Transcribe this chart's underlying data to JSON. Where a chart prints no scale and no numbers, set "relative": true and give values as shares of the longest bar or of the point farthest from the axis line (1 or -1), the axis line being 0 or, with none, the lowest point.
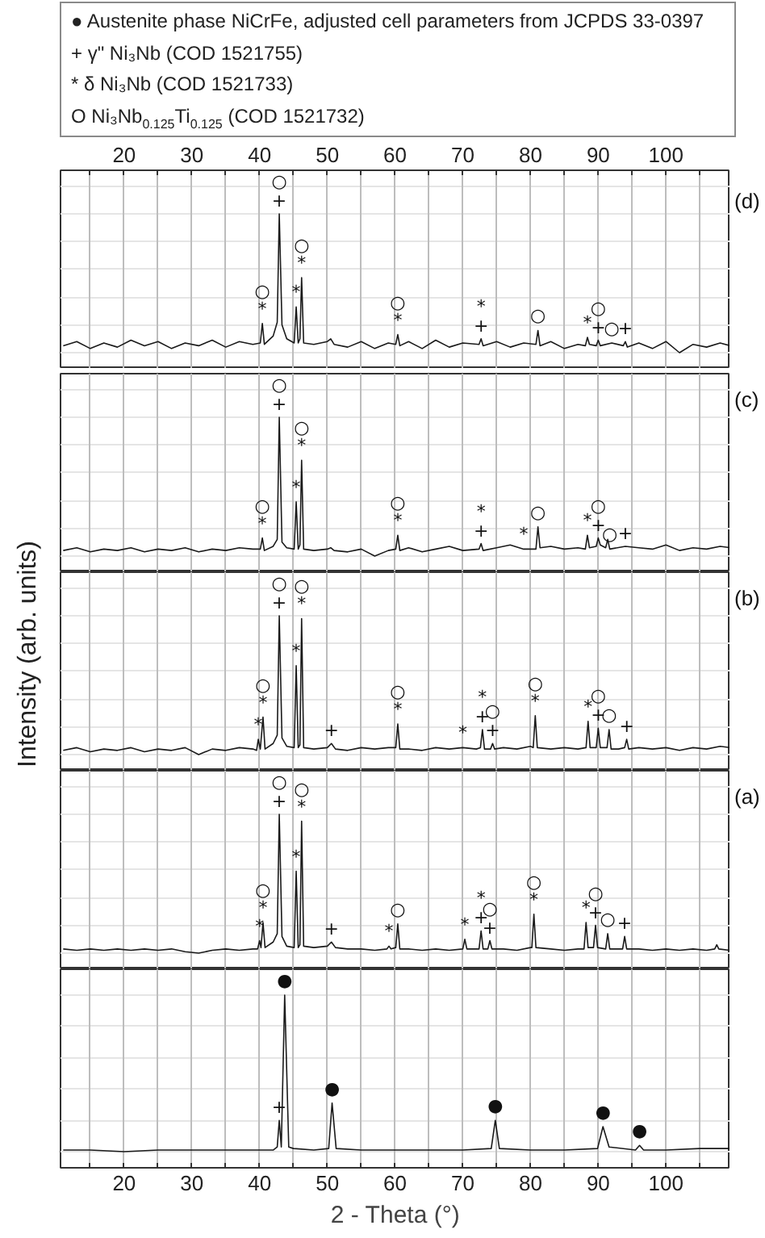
{
  "chart_data": [
    {
      "type": "line",
      "relative": true,
      "title": "(d)",
      "grid": "x",
      "tick_labels": false,
      "xlim": [
        10.6,
        109.5
      ],
      "xticks": [
        {
          "value": 15,
          "label": null
        },
        20,
        {
          "value": 25,
          "label": null
        },
        30,
        {
          "value": 35,
          "label": null
        },
        40,
        {
          "value": 45,
          "label": null
        },
        50,
        {
          "value": 55,
          "label": null
        },
        60,
        {
          "value": 65,
          "label": null
        },
        70,
        {
          "value": 75,
          "label": null
        },
        80,
        {
          "value": 85,
          "label": null
        },
        90,
        {
          "value": 95,
          "label": null
        },
        100,
        {
          "value": 105,
          "label": null
        }
      ],
      "x2lim": [
        10.6,
        109.5
      ],
      "x2ticks": [
        {
          "value": 15,
          "label": null
        },
        20,
        {
          "value": 25,
          "label": null
        },
        30,
        {
          "value": 35,
          "label": null
        },
        40,
        {
          "value": 45,
          "label": null
        },
        50,
        {
          "value": 55,
          "label": null
        },
        60,
        {
          "value": 65,
          "label": null
        },
        70,
        {
          "value": 75,
          "label": null
        },
        80,
        {
          "value": 85,
          "label": null
        },
        90,
        {
          "value": 95,
          "label": null
        },
        100,
        {
          "value": 105,
          "label": null
        }
      ],
      "series": [
        {
          "color": "#1a1a1a",
          "x": [
            11,
            13,
            15,
            17,
            19,
            21,
            23,
            25,
            27,
            29,
            31,
            33,
            35,
            37,
            39,
            40.1,
            40.4,
            40.7,
            42,
            42.6,
            42.9,
            43.3,
            44,
            45.1,
            45.4,
            45.7,
            45.95,
            46.2,
            46.5,
            48,
            50,
            50.5,
            51,
            53,
            55,
            57,
            59,
            60.1,
            60.4,
            60.7,
            62,
            64,
            66,
            68,
            70,
            72.4,
            72.7,
            73,
            75,
            77,
            79,
            80.8,
            81.1,
            81.4,
            83,
            85,
            87,
            88.1,
            88.4,
            88.7,
            89.7,
            90,
            90.3,
            92,
            93.7,
            94,
            94.3,
            96,
            98,
            100,
            102,
            104,
            106,
            108,
            109.5
          ],
          "values": [
            0.05,
            0.08,
            0.03,
            0.07,
            0.04,
            0.09,
            0.05,
            0.08,
            0.03,
            0.07,
            0.05,
            0.09,
            0.04,
            0.08,
            0.06,
            0.07,
            0.21,
            0.06,
            0.12,
            0.22,
            1,
            0.2,
            0.1,
            0.07,
            0.33,
            0.07,
            0.1,
            0.54,
            0.07,
            0.06,
            0.08,
            0.1,
            0.06,
            0.04,
            0.08,
            0.03,
            0.07,
            0.06,
            0.13,
            0.05,
            0.08,
            0.03,
            0.09,
            0.04,
            0.07,
            0.06,
            0.1,
            0.05,
            0.08,
            0.04,
            0.07,
            0.06,
            0.16,
            0.05,
            0.08,
            0.03,
            0.06,
            0.05,
            0.11,
            0.06,
            0.05,
            0.09,
            0.05,
            0.07,
            0.05,
            0.08,
            0.04,
            0.07,
            0.03,
            0.08,
            0,
            0.06,
            0.04,
            0.07,
            0.05
          ]
        }
      ],
      "annotations": [
        "● Austenite phase NiCrFe, adjusted cell parameters from JCPDS 33-0397",
        "+ γ\" Ni₃Nb (COD 1521755)",
        "* δ Ni₃Nb (COD 1521733)",
        "O Ni₃Nb$_{0.125}$Ti$_{0.125}$ (COD 1521732)",
        {
          "text": "*",
          "x": 40.4,
          "y": 0.21
        },
        {
          "text": "○",
          "x": 40.4,
          "y": 0.21
        },
        {
          "text": "+",
          "x": 42.9,
          "y": 1
        },
        {
          "text": "○",
          "x": 42.9,
          "y": 1
        },
        {
          "text": "*",
          "x": 45.4,
          "y": 0.33
        },
        {
          "text": "*",
          "x": 46.2,
          "y": 0.54
        },
        {
          "text": "○",
          "x": 46.2,
          "y": 0.54
        },
        {
          "text": "*",
          "x": 60.4,
          "y": 0.13
        },
        {
          "text": "○",
          "x": 60.4,
          "y": 0.13
        },
        {
          "text": "+",
          "x": 72.7,
          "y": 0.1
        },
        {
          "text": "*",
          "x": 72.7,
          "y": 0.1
        },
        {
          "text": "○",
          "x": 81.1,
          "y": 0.16
        },
        {
          "text": "*",
          "x": 88.4,
          "y": 0.11
        },
        {
          "text": "+",
          "x": 90,
          "y": 0.09
        },
        {
          "text": "○",
          "x": 90,
          "y": 0.09
        },
        {
          "text": "○",
          "x": 92,
          "y": 0.07
        },
        {
          "text": "+",
          "x": 94,
          "y": 0.08
        }
      ]
    },
    {
      "type": "line",
      "relative": true,
      "title": "(c)",
      "grid": "x",
      "tick_labels": false,
      "xlim": [
        10.6,
        109.5
      ],
      "xticks": [
        {
          "value": 15,
          "label": null
        },
        20,
        {
          "value": 25,
          "label": null
        },
        30,
        {
          "value": 35,
          "label": null
        },
        40,
        {
          "value": 45,
          "label": null
        },
        50,
        {
          "value": 55,
          "label": null
        },
        60,
        {
          "value": 65,
          "label": null
        },
        70,
        {
          "value": 75,
          "label": null
        },
        80,
        {
          "value": 85,
          "label": null
        },
        90,
        {
          "value": 95,
          "label": null
        },
        100,
        {
          "value": 105,
          "label": null
        }
      ],
      "series": [
        {
          "color": "#1a1a1a",
          "x": [
            11,
            13,
            15,
            17,
            19,
            21,
            23,
            25,
            27,
            29,
            31,
            33,
            35,
            37,
            39,
            40.1,
            40.4,
            40.7,
            42,
            42.6,
            42.9,
            43.3,
            44,
            45.1,
            45.4,
            45.7,
            45.95,
            46.2,
            46.5,
            48,
            50,
            50.5,
            51,
            53,
            55,
            57,
            59,
            60.1,
            60.4,
            60.7,
            62,
            64,
            66,
            68,
            70,
            72.4,
            72.7,
            73,
            75,
            77,
            79,
            80.8,
            81.1,
            81.4,
            83,
            85,
            87,
            88.1,
            88.4,
            88.7,
            89.7,
            90,
            90.3,
            91.1,
            91.4,
            91.7,
            94,
            96,
            98,
            100,
            102,
            104,
            106,
            108,
            109.5
          ],
          "values": [
            0.04,
            0.06,
            0.03,
            0.05,
            0.04,
            0.06,
            0.03,
            0.05,
            0.04,
            0.06,
            0.03,
            0.05,
            0.04,
            0.06,
            0.05,
            0.05,
            0.13,
            0.04,
            0.07,
            0.12,
            1,
            0.1,
            0.06,
            0.05,
            0.39,
            0.05,
            0.08,
            0.69,
            0.05,
            0.04,
            0.05,
            0.06,
            0.04,
            0.03,
            0.05,
            0,
            0.04,
            0.05,
            0.15,
            0.04,
            0.06,
            0.03,
            0.05,
            0.07,
            0.04,
            0.05,
            0.09,
            0.04,
            0.06,
            0.08,
            0.05,
            0.05,
            0.21,
            0.06,
            0.07,
            0.05,
            0.06,
            0.05,
            0.15,
            0.06,
            0.07,
            0.13,
            0.08,
            0.06,
            0.12,
            0.05,
            0.07,
            0.06,
            0.05,
            0.08,
            0.04,
            0.06,
            0.05,
            0.07,
            0.06
          ]
        }
      ],
      "annotations": [
        {
          "text": "*",
          "x": 40.4,
          "y": 0.13
        },
        {
          "text": "○",
          "x": 40.4,
          "y": 0.13
        },
        {
          "text": "+",
          "x": 42.9,
          "y": 1
        },
        {
          "text": "○",
          "x": 42.9,
          "y": 1
        },
        {
          "text": "*",
          "x": 45.4,
          "y": 0.39
        },
        {
          "text": "*",
          "x": 46.2,
          "y": 0.69
        },
        {
          "text": "○",
          "x": 46.2,
          "y": 0.69
        },
        {
          "text": "*",
          "x": 60.4,
          "y": 0.15
        },
        {
          "text": "○",
          "x": 60.4,
          "y": 0.15
        },
        {
          "text": "+",
          "x": 72.7,
          "y": 0.09
        },
        {
          "text": "*",
          "x": 72.7,
          "y": 0.09
        },
        {
          "text": "*",
          "x": 79,
          "y": 0.05
        },
        {
          "text": "○",
          "x": 81.1,
          "y": 0.21
        },
        {
          "text": "*",
          "x": 88.4,
          "y": 0.15
        },
        {
          "text": "+",
          "x": 90,
          "y": 0.13
        },
        {
          "text": "○",
          "x": 90,
          "y": 0.13
        },
        {
          "text": "○",
          "x": 91.7,
          "y": 0.05
        },
        {
          "text": "+",
          "x": 94,
          "y": 0.07
        }
      ]
    },
    {
      "type": "line",
      "relative": true,
      "title": "(b)",
      "ylabel": "Intensity (arb. units)",
      "grid": "x",
      "tick_labels": false,
      "xlim": [
        10.6,
        109.5
      ],
      "xticks": [
        {
          "value": 15,
          "label": null
        },
        20,
        {
          "value": 25,
          "label": null
        },
        30,
        {
          "value": 35,
          "label": null
        },
        40,
        {
          "value": 45,
          "label": null
        },
        50,
        {
          "value": 55,
          "label": null
        },
        60,
        {
          "value": 65,
          "label": null
        },
        70,
        {
          "value": 75,
          "label": null
        },
        80,
        {
          "value": 85,
          "label": null
        },
        90,
        {
          "value": 95,
          "label": null
        },
        100,
        {
          "value": 105,
          "label": null
        }
      ],
      "series": [
        {
          "color": "#1a1a1a",
          "x": [
            11,
            13,
            15,
            17,
            19,
            21,
            23,
            25,
            27,
            29,
            31,
            33,
            35,
            37,
            39,
            39.55,
            39.8,
            40.1,
            40.5,
            40.8,
            42,
            42.6,
            42.9,
            43.3,
            44,
            45.1,
            45.4,
            45.7,
            45.95,
            46.2,
            46.5,
            48,
            50,
            50.6,
            51.2,
            53,
            55,
            57,
            59,
            60.1,
            60.4,
            60.7,
            62,
            64,
            66,
            68,
            70,
            72,
            72.6,
            72.9,
            73.2,
            74.1,
            74.4,
            74.7,
            76,
            78,
            80,
            80.4,
            80.7,
            81,
            83,
            85,
            87,
            88.2,
            88.5,
            88.8,
            89.7,
            90,
            90.3,
            91.3,
            91.6,
            91.9,
            93,
            93.9,
            94.2,
            94.5,
            96,
            98,
            100,
            102,
            104,
            106,
            108,
            109.5
          ],
          "values": [
            0.03,
            0.05,
            0.02,
            0.04,
            0.03,
            0.05,
            0.02,
            0.04,
            0.03,
            0.05,
            0,
            0.04,
            0.03,
            0.05,
            0.04,
            0.03,
            0.11,
            0.04,
            0.27,
            0.04,
            0.08,
            0.14,
            1,
            0.12,
            0.06,
            0.05,
            0.64,
            0.05,
            0.07,
            0.98,
            0.05,
            0.04,
            0.05,
            0.08,
            0.04,
            0.03,
            0.05,
            0.04,
            0.05,
            0.05,
            0.22,
            0.04,
            0.04,
            0.03,
            0.05,
            0.04,
            0.05,
            0.04,
            0.05,
            0.18,
            0.04,
            0.04,
            0.08,
            0.04,
            0.05,
            0.04,
            0.06,
            0.05,
            0.28,
            0.05,
            0.04,
            0.05,
            0.04,
            0.05,
            0.24,
            0.05,
            0.05,
            0.19,
            0.05,
            0.05,
            0.18,
            0.04,
            0.04,
            0.05,
            0.11,
            0.04,
            0.05,
            0.04,
            0.05,
            0.03,
            0.05,
            0.04,
            0.06,
            0.05
          ]
        }
      ],
      "annotations": [
        {
          "text": "*",
          "x": 39.8,
          "y": 0.11
        },
        {
          "text": "*",
          "x": 40.5,
          "y": 0.27
        },
        {
          "text": "○",
          "x": 40.5,
          "y": 0.27
        },
        {
          "text": "+",
          "x": 42.9,
          "y": 1
        },
        {
          "text": "○",
          "x": 42.9,
          "y": 1
        },
        {
          "text": "*",
          "x": 45.4,
          "y": 0.64
        },
        {
          "text": "*",
          "x": 46.2,
          "y": 0.98
        },
        {
          "text": "○",
          "x": 46.2,
          "y": 0.98
        },
        {
          "text": "+",
          "x": 50.6,
          "y": 0.08
        },
        {
          "text": "*",
          "x": 60.4,
          "y": 0.22
        },
        {
          "text": "○",
          "x": 60.4,
          "y": 0.22
        },
        {
          "text": "*",
          "x": 70,
          "y": 0.05
        },
        {
          "text": "+",
          "x": 72.9,
          "y": 0.18
        },
        {
          "text": "*",
          "x": 72.9,
          "y": 0.18
        },
        {
          "text": "+",
          "x": 74.4,
          "y": 0.08
        },
        {
          "text": "○",
          "x": 74.4,
          "y": 0.08
        },
        {
          "text": "*",
          "x": 80.7,
          "y": 0.28
        },
        {
          "text": "○",
          "x": 80.7,
          "y": 0.28
        },
        {
          "text": "*",
          "x": 88.5,
          "y": 0.24
        },
        {
          "text": "+",
          "x": 90,
          "y": 0.19
        },
        {
          "text": "○",
          "x": 90,
          "y": 0.19
        },
        {
          "text": "○",
          "x": 91.6,
          "y": 0.18
        },
        {
          "text": "+",
          "x": 94.2,
          "y": 0.11
        }
      ]
    },
    {
      "type": "line",
      "relative": true,
      "title": "(a)",
      "grid": "x",
      "tick_labels": false,
      "xlim": [
        10.6,
        109.5
      ],
      "xticks": [
        {
          "value": 15,
          "label": null
        },
        20,
        {
          "value": 25,
          "label": null
        },
        30,
        {
          "value": 35,
          "label": null
        },
        40,
        {
          "value": 45,
          "label": null
        },
        50,
        {
          "value": 55,
          "label": null
        },
        60,
        {
          "value": 65,
          "label": null
        },
        70,
        {
          "value": 75,
          "label": null
        },
        80,
        {
          "value": 85,
          "label": null
        },
        90,
        {
          "value": 95,
          "label": null
        },
        100,
        {
          "value": 105,
          "label": null
        }
      ],
      "series": [
        {
          "color": "#1a1a1a",
          "x": [
            11,
            13,
            15,
            17,
            19,
            21,
            23,
            25,
            27,
            29,
            31,
            33,
            35,
            37,
            39,
            39.7,
            40,
            40.2,
            40.5,
            40.8,
            42,
            42.6,
            42.9,
            43.3,
            44,
            45.1,
            45.4,
            45.7,
            45.95,
            46.2,
            46.5,
            48,
            50,
            50.6,
            51.2,
            53,
            55,
            57,
            58.8,
            59.1,
            59.4,
            60.1,
            60.4,
            60.7,
            62,
            64,
            66,
            68,
            70,
            70.3,
            70.6,
            72.4,
            72.7,
            73,
            73.7,
            74,
            74.3,
            76,
            78,
            80,
            80.2,
            80.5,
            80.8,
            83,
            85,
            87,
            87.9,
            88.2,
            88.5,
            89.3,
            89.6,
            89.9,
            91.1,
            91.4,
            91.7,
            93,
            93.6,
            93.9,
            94.2,
            96,
            98,
            100,
            102,
            104,
            106,
            107.2,
            107.5,
            107.8,
            109.5
          ],
          "values": [
            0.03,
            0.02,
            0.03,
            0.02,
            0.03,
            0.02,
            0.03,
            0.02,
            0.03,
            0.01,
            0,
            0.02,
            0.03,
            0.02,
            0.03,
            0.03,
            0.09,
            0.04,
            0.22,
            0.04,
            0.08,
            0.14,
            1,
            0.12,
            0.05,
            0.04,
            0.59,
            0.04,
            0.06,
            0.95,
            0.05,
            0.04,
            0.05,
            0.08,
            0.04,
            0.03,
            0.03,
            0.02,
            0.03,
            0.05,
            0.03,
            0.04,
            0.21,
            0.03,
            0.03,
            0.02,
            0.03,
            0.02,
            0.03,
            0.1,
            0.03,
            0.03,
            0.16,
            0.03,
            0.03,
            0.09,
            0.03,
            0.03,
            0.02,
            0.04,
            0.04,
            0.28,
            0.04,
            0.03,
            0.02,
            0.03,
            0.03,
            0.22,
            0.04,
            0.04,
            0.2,
            0.04,
            0.03,
            0.14,
            0.03,
            0.03,
            0.03,
            0.12,
            0.03,
            0.03,
            0.02,
            0.03,
            0.02,
            0.03,
            0.02,
            0.03,
            0.06,
            0.03,
            0.02
          ]
        }
      ],
      "annotations": [
        {
          "text": "*",
          "x": 40,
          "y": 0.09
        },
        {
          "text": "*",
          "x": 40.5,
          "y": 0.22
        },
        {
          "text": "○",
          "x": 40.5,
          "y": 0.22
        },
        {
          "text": "+",
          "x": 42.9,
          "y": 1
        },
        {
          "text": "○",
          "x": 42.9,
          "y": 1
        },
        {
          "text": "*",
          "x": 45.4,
          "y": 0.59
        },
        {
          "text": "*",
          "x": 46.2,
          "y": 0.95
        },
        {
          "text": "○",
          "x": 46.2,
          "y": 0.95
        },
        {
          "text": "+",
          "x": 50.6,
          "y": 0.08
        },
        {
          "text": "*",
          "x": 59.1,
          "y": 0.05
        },
        {
          "text": "○",
          "x": 60.4,
          "y": 0.21
        },
        {
          "text": "*",
          "x": 70.3,
          "y": 0.1
        },
        {
          "text": "+",
          "x": 72.7,
          "y": 0.16
        },
        {
          "text": "*",
          "x": 72.7,
          "y": 0.16
        },
        {
          "text": "+",
          "x": 74,
          "y": 0.09
        },
        {
          "text": "○",
          "x": 74,
          "y": 0.09
        },
        {
          "text": "*",
          "x": 80.5,
          "y": 0.28
        },
        {
          "text": "○",
          "x": 80.5,
          "y": 0.28
        },
        {
          "text": "*",
          "x": 88.2,
          "y": 0.22
        },
        {
          "text": "+",
          "x": 89.6,
          "y": 0.2
        },
        {
          "text": "○",
          "x": 89.6,
          "y": 0.2
        },
        {
          "text": "○",
          "x": 91.4,
          "y": 0.14
        },
        {
          "text": "+",
          "x": 93.9,
          "y": 0.12
        }
      ]
    },
    {
      "type": "line",
      "relative": true,
      "grid": "x",
      "tick_labels": "x",
      "xlabel": "2 - Theta (°)",
      "xlim": [
        10.6,
        109.5
      ],
      "xticks": [
        {
          "value": 15,
          "label": null
        },
        20,
        {
          "value": 25,
          "label": null
        },
        30,
        {
          "value": 35,
          "label": null
        },
        40,
        {
          "value": 45,
          "label": null
        },
        50,
        {
          "value": 55,
          "label": null
        },
        60,
        {
          "value": 65,
          "label": null
        },
        70,
        {
          "value": 75,
          "label": null
        },
        80,
        {
          "value": 85,
          "label": null
        },
        90,
        {
          "value": 95,
          "label": null
        },
        100,
        {
          "value": 105,
          "label": null
        }
      ],
      "series": [
        {
          "color": "#1a1a1a",
          "x": [
            11,
            15,
            20,
            25,
            30,
            35,
            40,
            42,
            42.6,
            42.9,
            43.2,
            43.7,
            44.3,
            45,
            48,
            50.2,
            50.7,
            51.3,
            55,
            60,
            65,
            70,
            74.2,
            74.8,
            75.4,
            80,
            85,
            89.9,
            90.7,
            91.6,
            95.5,
            96.1,
            96.7,
            100,
            105,
            109.5
          ],
          "values": [
            0.01,
            0.01,
            0,
            0.01,
            0.01,
            0.01,
            0.01,
            0.01,
            0.03,
            0.2,
            0.03,
            1,
            0.03,
            0.02,
            0.01,
            0.02,
            0.31,
            0.02,
            0.01,
            0.01,
            0.01,
            0.01,
            0.02,
            0.2,
            0.02,
            0.01,
            0.01,
            0.02,
            0.16,
            0.03,
            0.01,
            0.04,
            0.01,
            0.01,
            0.02,
            0.02
          ]
        }
      ],
      "annotations": [
        {
          "text": "+",
          "x": 42.9,
          "y": 0.2
        },
        {
          "text": "●",
          "x": 43.7,
          "y": 1
        },
        {
          "text": "●",
          "x": 50.7,
          "y": 0.31
        },
        {
          "text": "●",
          "x": 74.8,
          "y": 0.2
        },
        {
          "text": "●",
          "x": 90.7,
          "y": 0.16
        },
        {
          "text": "●",
          "x": 96.1,
          "y": 0.04
        }
      ]
    }
  ]
}
